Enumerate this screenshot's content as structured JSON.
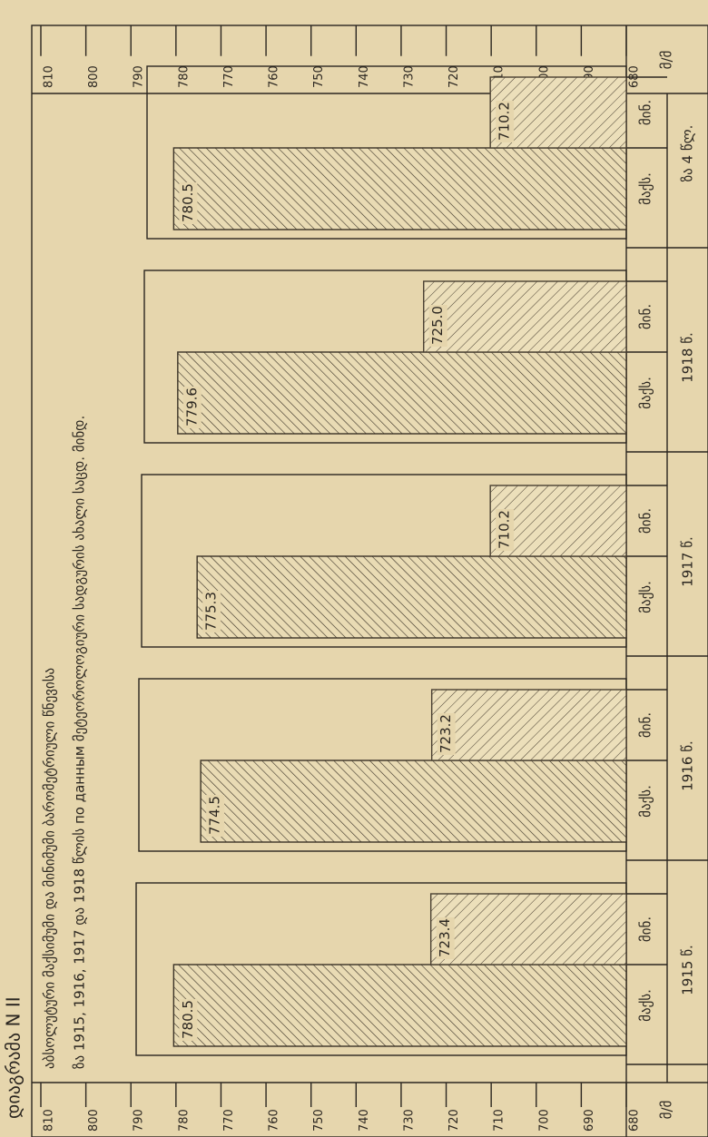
{
  "chart_data": {
    "type": "bar",
    "title": "დიაგრამა N II",
    "subtitle": [
      "აბსოლუტური მაქსიმუმი და მინიმუმი ბარომეტრიული წნევისა",
      "ზა 1915, 1916, 1917 და 1918 წლის по данным მეტეოროლოგიური სადგურის ახალი საცდ. მინდ."
    ],
    "categories": [
      "1915 წ.",
      "1916 წ.",
      "1917 წ.",
      "1918 წ.",
      "ზა 4 წლ."
    ],
    "series": [
      {
        "name": "მაქს.",
        "color": "#3a3226",
        "values": [
          780.5,
          774.5,
          775.3,
          779.6,
          780.5
        ]
      },
      {
        "name": "მინ.",
        "color": "#4a4032",
        "values": [
          723.4,
          723.2,
          710.2,
          725.0,
          710.2
        ],
        "value_labels": [
          "723.4",
          "723.2",
          "710.2",
          "725.0",
          "710.2"
        ]
      }
    ],
    "unit_label": "მ/მ",
    "ylim": [
      680,
      810
    ],
    "yticks": [
      680,
      690,
      700,
      710,
      720,
      730,
      740,
      750,
      760,
      770,
      780,
      790,
      800,
      810
    ]
  }
}
